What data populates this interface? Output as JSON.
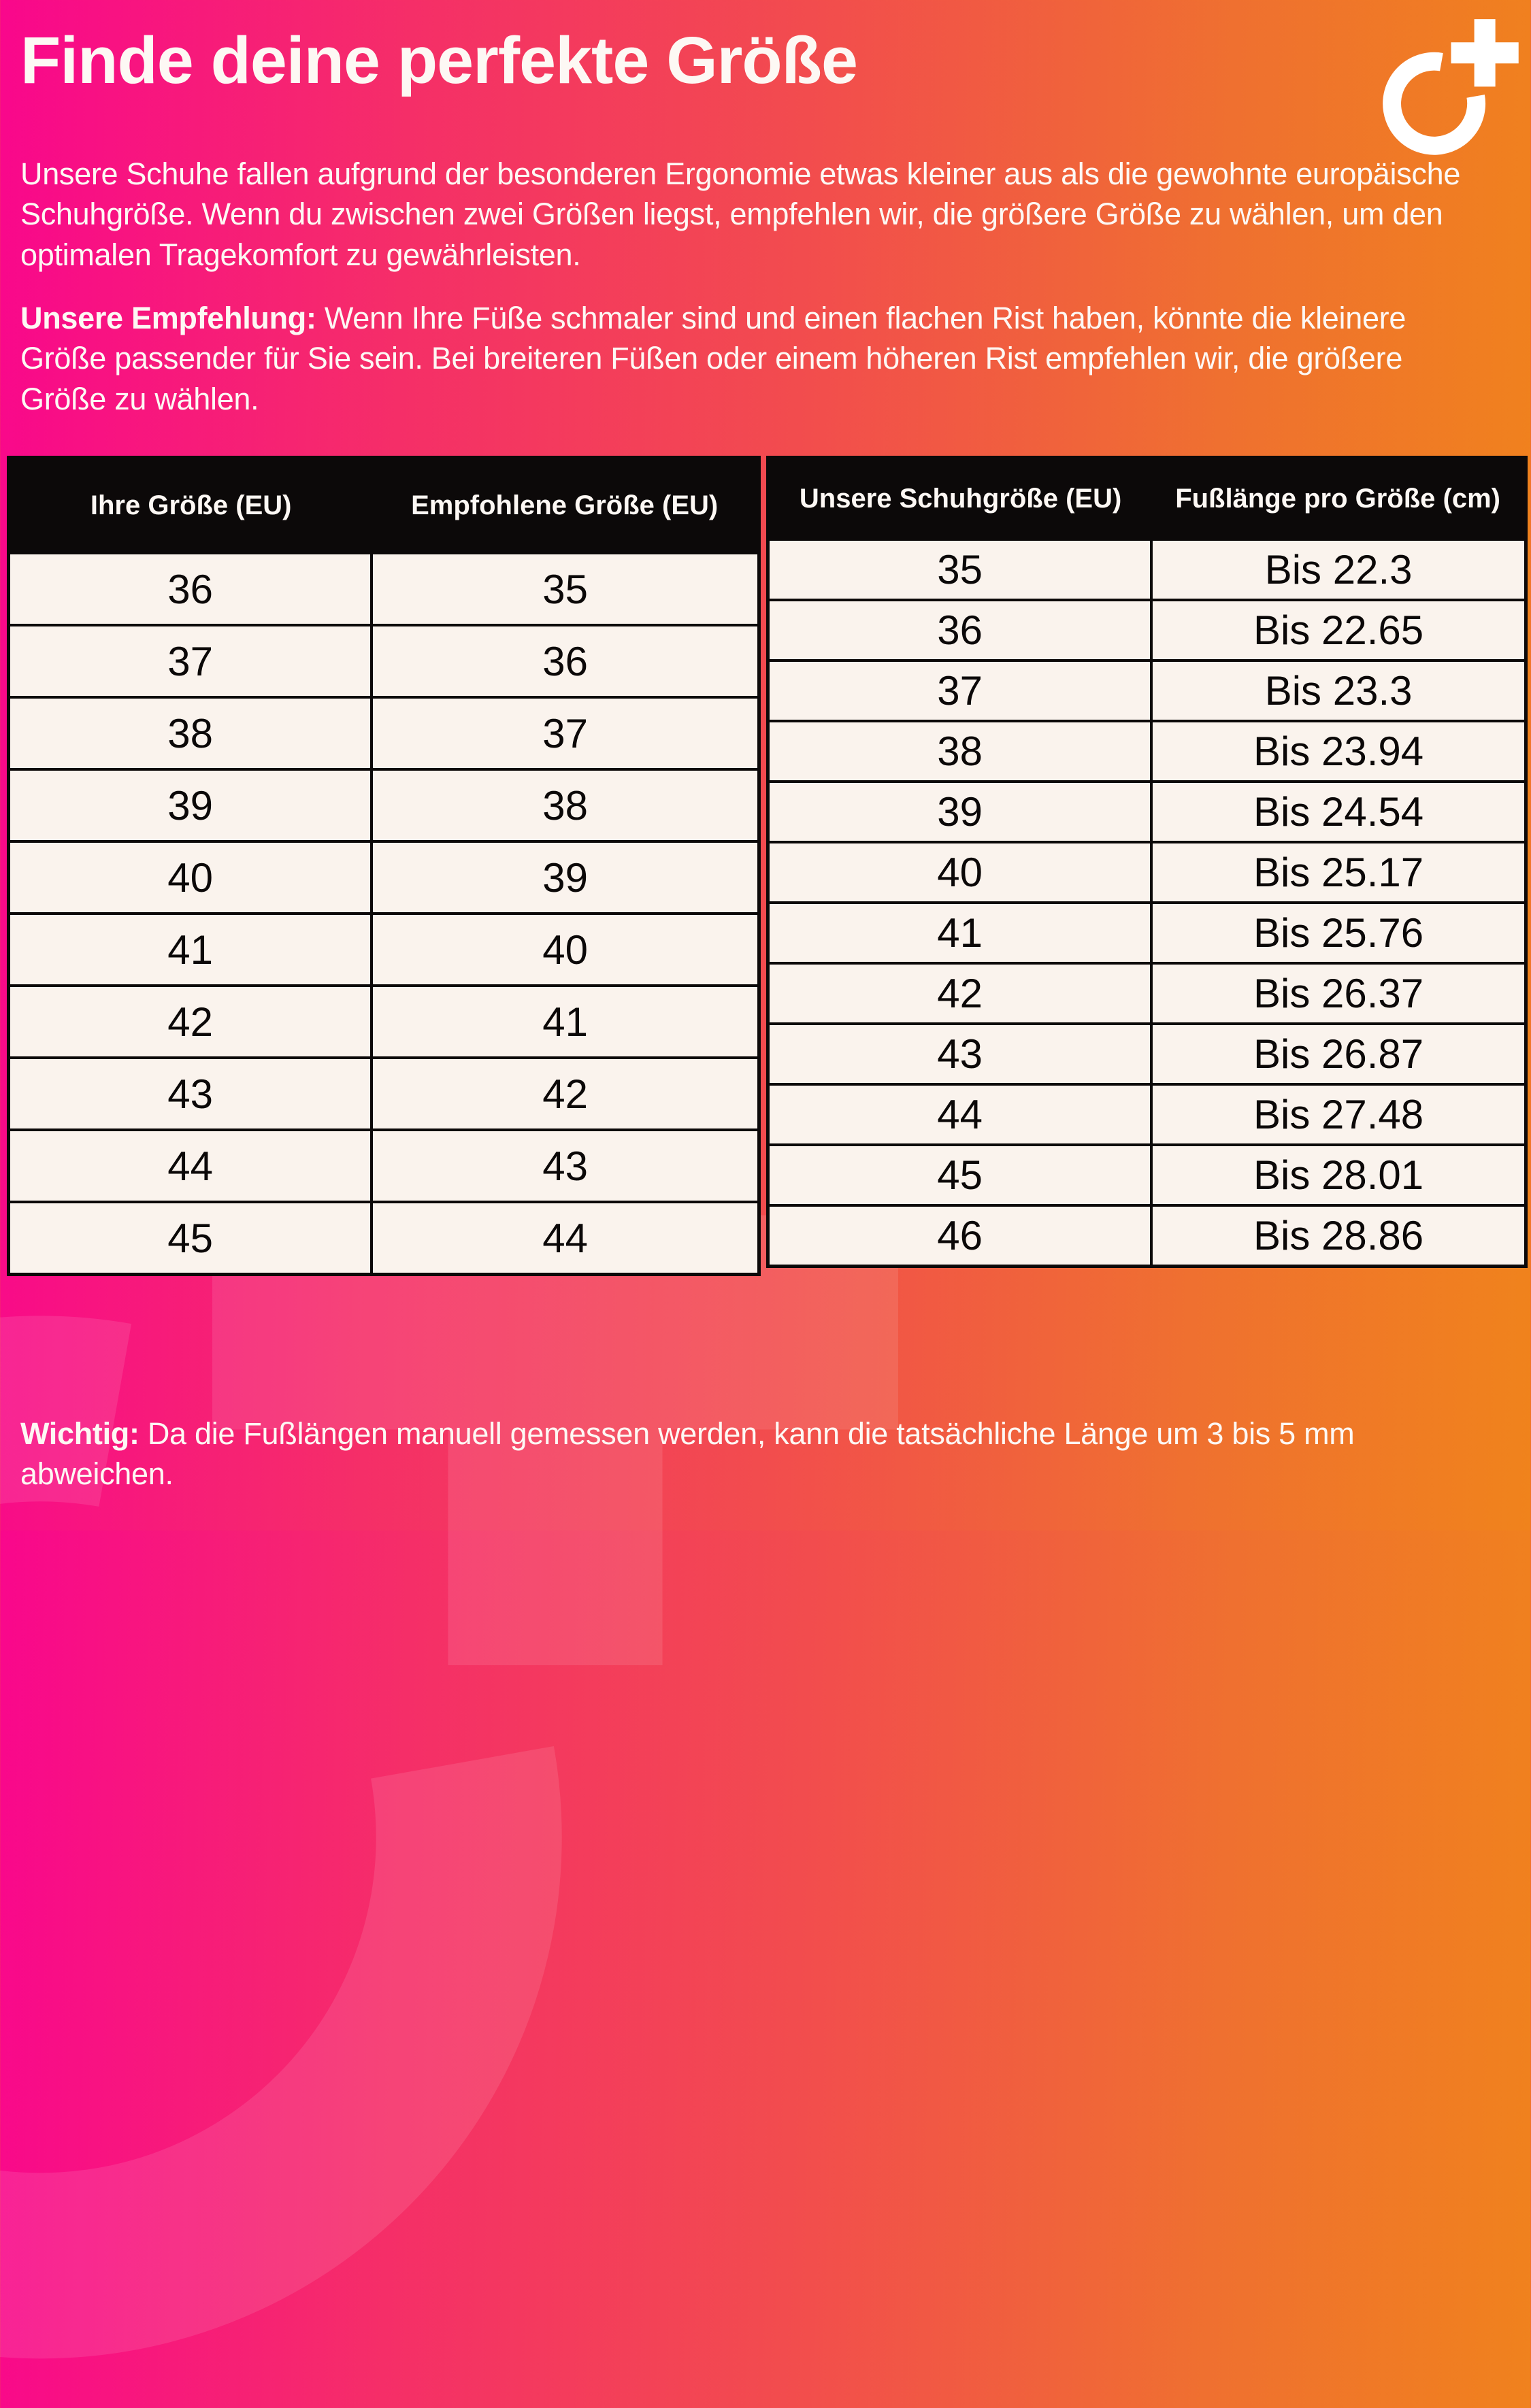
{
  "header": {
    "title": "Finde deine perfekte Größe",
    "logo_icon": "ring-plus-logo"
  },
  "intro": {
    "text": "Unsere Schuhe fallen aufgrund der besonderen Ergonomie etwas kleiner aus als die gewohnte europäische Schuhgröße. Wenn du zwischen zwei Größen liegst, empfehlen wir, die größere Größe zu wählen, um den optimalen Tragekomfort zu gewährleisten."
  },
  "recommendation": {
    "label": "Unsere Empfehlung:",
    "text": " Wenn Ihre Füße schmaler sind und einen flachen Rist haben, könnte die kleinere Größe passender für Sie sein. Bei breiteren Füßen oder einem höheren Rist empfehlen wir, die größere Größe zu wählen."
  },
  "tables": {
    "conversion": {
      "headers": [
        "Ihre Größe (EU)",
        "Empfohlene Größe (EU)"
      ],
      "rows": [
        [
          "36",
          "35"
        ],
        [
          "37",
          "36"
        ],
        [
          "38",
          "37"
        ],
        [
          "39",
          "38"
        ],
        [
          "40",
          "39"
        ],
        [
          "41",
          "40"
        ],
        [
          "42",
          "41"
        ],
        [
          "43",
          "42"
        ],
        [
          "44",
          "43"
        ],
        [
          "45",
          "44"
        ]
      ]
    },
    "footLength": {
      "headers": [
        "Unsere Schuhgröße (EU)",
        "Fußlänge pro Größe (cm)"
      ],
      "rows": [
        [
          "35",
          "Bis 22.3"
        ],
        [
          "36",
          "Bis 22.65"
        ],
        [
          "37",
          "Bis 23.3"
        ],
        [
          "38",
          "Bis 23.94"
        ],
        [
          "39",
          "Bis 24.54"
        ],
        [
          "40",
          "Bis 25.17"
        ],
        [
          "41",
          "Bis 25.76"
        ],
        [
          "42",
          "Bis 26.37"
        ],
        [
          "43",
          "Bis 26.87"
        ],
        [
          "44",
          "Bis 27.48"
        ],
        [
          "45",
          "Bis 28.01"
        ],
        [
          "46",
          "Bis 28.86"
        ]
      ]
    }
  },
  "footnote": {
    "label": "Wichtig:",
    "text": " Da die Fußlängen manuell gemessen werden, kann die tatsächliche Länge um 3 bis 5 mm abweichen."
  },
  "colors": {
    "gradient_start": "#f9078c",
    "gradient_end": "#f0831c",
    "table_header_bg": "#0c0909",
    "cell_bg": "#faf3ed",
    "text": "#fdf8f4"
  }
}
